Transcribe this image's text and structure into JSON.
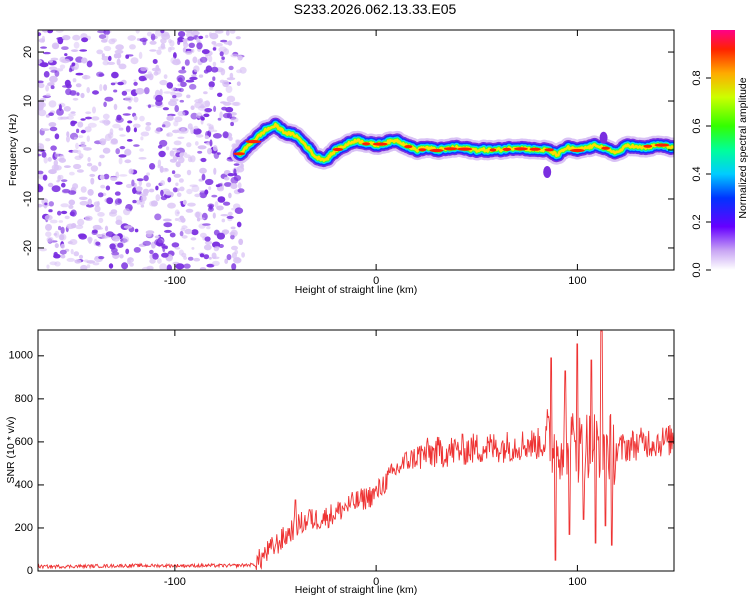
{
  "title": "S233.2026.062.13.33.E05",
  "colors": {
    "snr_line": "#ee3333",
    "noise_purple": "#7a2ee0",
    "noise_light": "#d9c2f5",
    "frame": "#000000"
  },
  "chart_data": [
    {
      "type": "heatmap",
      "name": "spectrogram",
      "xlabel": "Height of straight line (km)",
      "ylabel": "Frequency (Hz)",
      "xlim": [
        -168,
        148
      ],
      "ylim": [
        -24.5,
        24.5
      ],
      "xticks": [
        -100,
        0,
        100
      ],
      "xtick_labels": [
        "-100",
        "0",
        "100"
      ],
      "yticks": [
        -20,
        -10,
        0,
        10,
        20
      ],
      "ytick_labels": [
        "-20",
        "-10",
        "0",
        "10",
        "20"
      ],
      "noise_region_km": [
        -168,
        -68
      ],
      "signal_start_km": -68,
      "ridge_profile": {
        "x": [
          -68,
          -62,
          -55,
          -50,
          -45,
          -40,
          -35,
          -30,
          -25,
          -20,
          -15,
          -10,
          -5,
          0,
          5,
          10,
          15,
          20,
          25,
          30,
          40,
          50,
          60,
          70,
          80,
          85,
          90,
          95,
          100,
          105,
          110,
          115,
          120,
          125,
          130,
          135,
          140,
          148
        ],
        "y": [
          -1,
          1.5,
          4,
          5,
          3.5,
          3,
          1,
          -1.5,
          -2,
          0,
          1,
          2,
          1.5,
          1,
          1.5,
          2,
          1,
          0,
          0.5,
          0,
          0.5,
          0,
          0,
          0.5,
          0,
          0,
          -1,
          0.5,
          0,
          0.5,
          1,
          0,
          -0.5,
          1,
          0.5,
          0.5,
          1,
          0.5
        ]
      },
      "colorbar": {
        "label": "Normalized spectral amplitude",
        "range": [
          0,
          1
        ],
        "ticks": [
          0.0,
          0.2,
          0.4,
          0.6,
          0.8
        ],
        "tick_labels": [
          "0.0",
          "0.2",
          "0.4",
          "0.6",
          "0.8"
        ],
        "colormap": "rainbow (violet to red)"
      }
    },
    {
      "type": "line",
      "name": "snr",
      "xlabel": "Height of straight line (km)",
      "ylabel": "SNR (10 * v/v)",
      "xlim": [
        -168,
        148
      ],
      "ylim": [
        0,
        1120
      ],
      "xticks": [
        -100,
        0,
        100
      ],
      "xtick_labels": [
        "-100",
        "0",
        "100"
      ],
      "yticks": [
        0,
        200,
        400,
        600,
        800,
        1000
      ],
      "ytick_labels": [
        "0",
        "200",
        "400",
        "600",
        "800",
        "1000"
      ],
      "envelope": {
        "x": [
          -168,
          -120,
          -70,
          -60,
          -55,
          -50,
          -45,
          -40,
          -35,
          -30,
          -25,
          -20,
          -15,
          -10,
          -5,
          0,
          5,
          10,
          15,
          20,
          25,
          30,
          40,
          50,
          60,
          70,
          75,
          80,
          85,
          90,
          95,
          100,
          105,
          110,
          115,
          120,
          125,
          130,
          135,
          140,
          148
        ],
        "y": [
          20,
          25,
          25,
          30,
          80,
          120,
          160,
          210,
          230,
          240,
          250,
          270,
          300,
          320,
          340,
          360,
          420,
          470,
          510,
          530,
          545,
          550,
          560,
          570,
          575,
          585,
          590,
          590,
          600,
          590,
          600,
          570,
          590,
          600,
          580,
          560,
          580,
          590,
          600,
          600,
          610
        ]
      },
      "spikes": [
        {
          "x": -40,
          "y": 330
        },
        {
          "x": -33,
          "y": 285
        },
        {
          "x": 87,
          "y": 990
        },
        {
          "x": 89,
          "y": 50
        },
        {
          "x": 94,
          "y": 930
        },
        {
          "x": 96,
          "y": 170
        },
        {
          "x": 100,
          "y": 1055
        },
        {
          "x": 103,
          "y": 240
        },
        {
          "x": 107,
          "y": 980
        },
        {
          "x": 109,
          "y": 130
        },
        {
          "x": 112,
          "y": 1115
        },
        {
          "x": 114,
          "y": 210
        },
        {
          "x": 117,
          "y": 120
        }
      ]
    }
  ]
}
